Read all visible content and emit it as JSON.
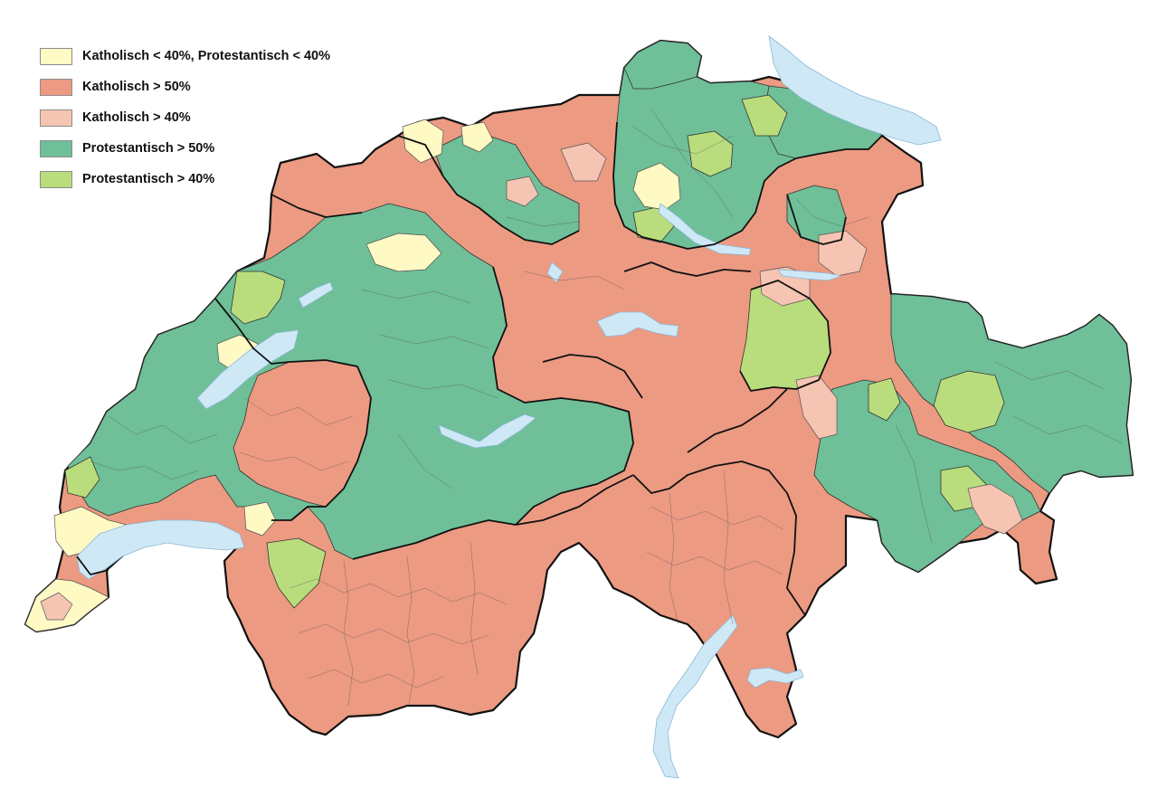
{
  "legend": {
    "items": [
      {
        "label": "Katholisch < 40%, Protestantisch < 40%",
        "color": "#fff9c4"
      },
      {
        "label": "Katholisch > 50%",
        "color": "#ec9a82"
      },
      {
        "label": "Katholisch > 40%",
        "color": "#f6c4b2"
      },
      {
        "label": "Protestantisch > 50%",
        "color": "#6fbf98"
      },
      {
        "label": "Protestantisch > 40%",
        "color": "#b9dd7c"
      }
    ]
  },
  "colors": {
    "lake": "#cfe8f6",
    "lake_outline": "#8ab8d6",
    "border": "#111111",
    "municipality_line": "#5a5a5a"
  }
}
